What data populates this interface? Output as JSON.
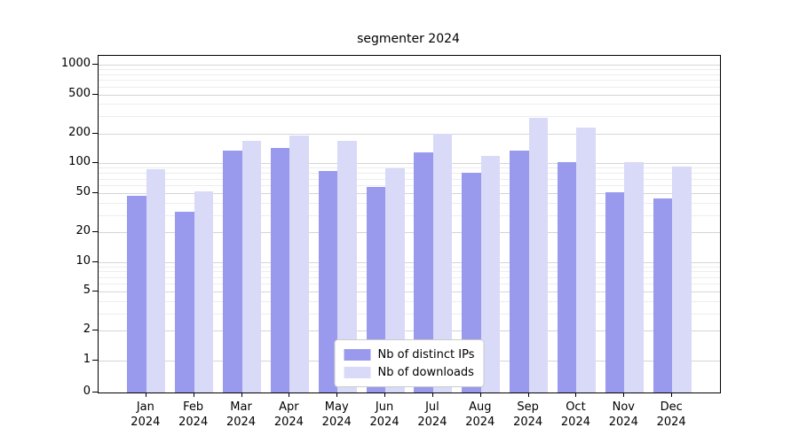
{
  "figure": {
    "background": "#ffffff",
    "axis_color": "#000000",
    "grid_major_color": "#d5d5d5",
    "grid_minor_color": "#ededed"
  },
  "chart_data": {
    "type": "bar",
    "title": "segmenter 2024",
    "xlabel": "",
    "ylabel": "",
    "yscale": "symlog",
    "grid": true,
    "legend_position": "lower center",
    "ylim": [
      0,
      1230
    ],
    "y_ticks": [
      0,
      1,
      2,
      5,
      10,
      20,
      50,
      100,
      200,
      500,
      1000
    ],
    "y_minor_ticks": [
      3,
      4,
      6,
      7,
      8,
      9,
      30,
      40,
      60,
      70,
      80,
      90,
      300,
      400,
      600,
      700,
      800,
      900
    ],
    "categories": [
      "Jan 2024",
      "Feb 2024",
      "Mar 2024",
      "Apr 2024",
      "May 2024",
      "Jun 2024",
      "Jul 2024",
      "Aug 2024",
      "Sep 2024",
      "Oct 2024",
      "Nov 2024",
      "Dec 2024"
    ],
    "series": [
      {
        "name": "Nb of distinct IPs",
        "color": "#9999ee",
        "values": [
          47,
          32,
          135,
          142,
          83,
          58,
          130,
          81,
          135,
          103,
          51,
          44
        ]
      },
      {
        "name": "Nb of downloads",
        "color": "#d9d9f8",
        "values": [
          88,
          52,
          170,
          190,
          168,
          89,
          198,
          120,
          290,
          232,
          102,
          92
        ]
      }
    ]
  }
}
